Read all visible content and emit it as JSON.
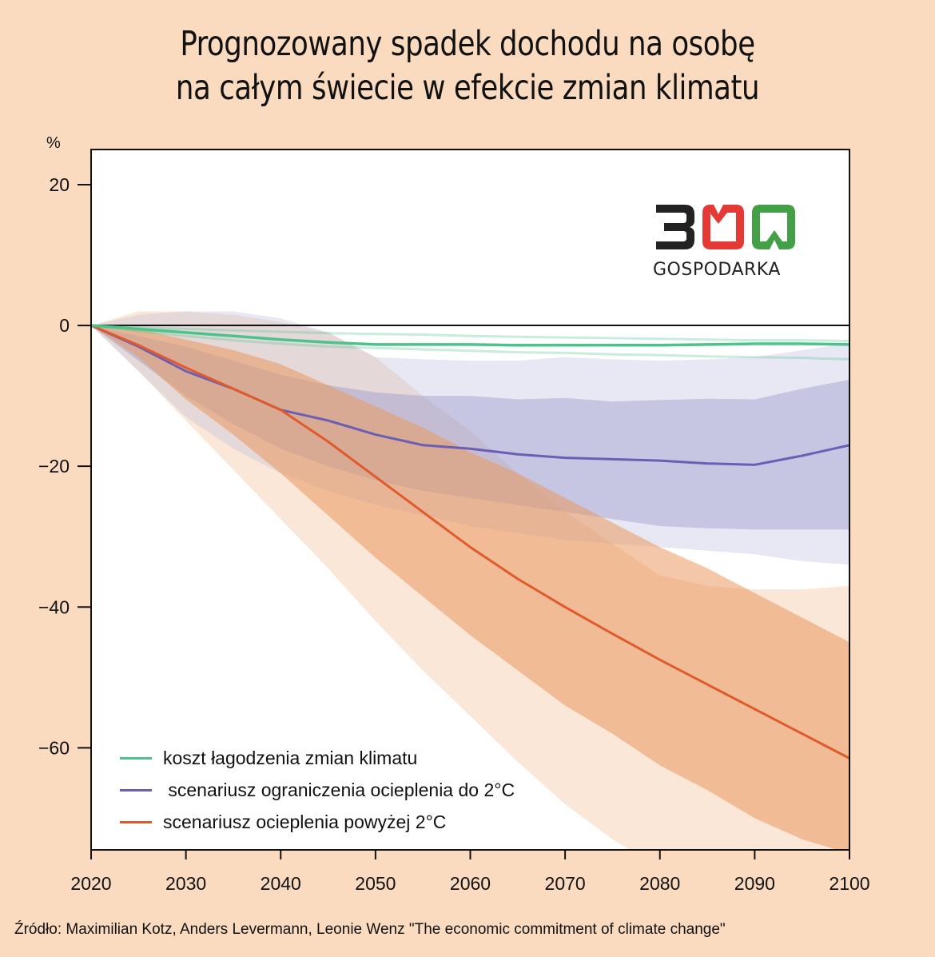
{
  "title_lines": [
    "Prognozowany spadek dochodu na osobę",
    "na całym świecie w efekcie zmian klimatu"
  ],
  "logo": {
    "number": "300",
    "label": "GOSPODARKA",
    "colors": [
      "#222222",
      "#e53935",
      "#43a047"
    ]
  },
  "source": "Źródło: Maximilian Kotz, Anders Levermann, Leonie Wenz \"The economic commitment of climate change\"",
  "chart_data": {
    "type": "line",
    "title": "Prognozowany spadek dochodu na osobę na całym świecie w efekcie zmian klimatu",
    "ylabel": "%",
    "xlabel": "",
    "xlim": [
      2020,
      2100
    ],
    "ylim": [
      -74.5,
      25
    ],
    "xticks": [
      2020,
      2030,
      2040,
      2050,
      2060,
      2070,
      2080,
      2090,
      2100
    ],
    "xtick_labels": [
      "2020",
      "2030",
      "2040",
      "2050",
      "2060",
      "2070",
      "2080",
      "2090",
      "2100"
    ],
    "yticks": [
      20,
      0,
      -20,
      -40,
      -60
    ],
    "ytick_labels": [
      "20",
      "0",
      "−20",
      "−40",
      "−60"
    ],
    "grid": false,
    "legend_position": "bottom-left",
    "x": [
      2020,
      2025,
      2030,
      2035,
      2040,
      2045,
      2050,
      2055,
      2060,
      2065,
      2070,
      2075,
      2080,
      2085,
      2090,
      2095,
      2100
    ],
    "series": [
      {
        "name": "koszt łagodzenia zmian klimatu",
        "color": "#4cc38a",
        "values": [
          0,
          -0.5,
          -1.0,
          -1.5,
          -2.0,
          -2.4,
          -2.7,
          -2.7,
          -2.7,
          -2.8,
          -2.8,
          -2.8,
          -2.8,
          -2.7,
          -2.6,
          -2.6,
          -2.7
        ],
        "bounds_upper": [
          0,
          -0.3,
          -0.5,
          -0.7,
          -0.9,
          -1.1,
          -1.2,
          -1.3,
          -1.5,
          -1.6,
          -1.7,
          -1.8,
          -1.9,
          -2.0,
          -2.1,
          -2.1,
          -2.2
        ],
        "bounds_lower": [
          0,
          -0.8,
          -1.5,
          -2.1,
          -2.6,
          -3.0,
          -3.2,
          -3.4,
          -3.6,
          -3.8,
          -3.9,
          -4.1,
          -4.2,
          -4.4,
          -4.5,
          -4.6,
          -4.8
        ]
      },
      {
        "name": " scenariusz ograniczenia ocieplenia do 2°C",
        "color": "#6a5fb5",
        "values": [
          0,
          -3.0,
          -6.5,
          -9.0,
          -12.0,
          -13.5,
          -15.5,
          -17.0,
          -17.5,
          -18.3,
          -18.8,
          -19.0,
          -19.2,
          -19.6,
          -19.8,
          -18.5,
          -17.0
        ],
        "band_inner": {
          "upper": [
            0,
            -1.5,
            -3.0,
            -5.0,
            -7.0,
            -8.5,
            -9.5,
            -10.0,
            -10.0,
            -10.5,
            -10.3,
            -10.8,
            -10.6,
            -10.4,
            -10.5,
            -9.0,
            -7.7
          ],
          "lower": [
            0,
            -5.0,
            -10.0,
            -14.0,
            -17.5,
            -20.0,
            -22.0,
            -23.5,
            -24.5,
            -25.5,
            -26.5,
            -27.5,
            -28.5,
            -28.8,
            -29.0,
            -29.0,
            -29.0
          ]
        },
        "band_outer": {
          "upper": [
            0,
            1.5,
            2.0,
            2.0,
            1.0,
            -1.0,
            -4.5,
            -4.8,
            -5.0,
            -5.0,
            -4.5,
            -4.8,
            -5.0,
            -4.8,
            -4.5,
            -3.5,
            -2.5
          ],
          "lower": [
            0,
            -6.5,
            -13.0,
            -17.5,
            -21.0,
            -23.5,
            -25.5,
            -27.0,
            -28.5,
            -29.5,
            -30.5,
            -31.0,
            -31.5,
            -32.0,
            -32.5,
            -33.5,
            -34.0
          ]
        }
      },
      {
        "name": "scenariusz ocieplenia powyżej 2°C",
        "color": "#e05a2b",
        "values": [
          0,
          -2.8,
          -6.0,
          -9.0,
          -12.0,
          -16.5,
          -21.5,
          -26.5,
          -31.5,
          -36.0,
          -40.0,
          -43.8,
          -47.5,
          -51.0,
          -54.5,
          -58.0,
          -61.5
        ],
        "band_inner": {
          "upper": [
            0,
            -0.5,
            -2.0,
            -3.5,
            -5.5,
            -8.5,
            -11.5,
            -14.5,
            -18.0,
            -21.0,
            -24.5,
            -28.0,
            -31.5,
            -34.5,
            -38.0,
            -41.5,
            -45.0
          ],
          "lower": [
            0,
            -4.5,
            -10.5,
            -15.5,
            -21.0,
            -27.0,
            -33.0,
            -38.5,
            -44.0,
            -49.0,
            -54.0,
            -58.0,
            -62.5,
            -66.0,
            -70.0,
            -73.0,
            -75.0
          ]
        },
        "band_outer": {
          "upper": [
            0,
            2.0,
            2.0,
            1.5,
            0.5,
            -1.0,
            -4.5,
            -10.0,
            -15.0,
            -21.0,
            -26.5,
            -31.0,
            -35.5,
            -37.0,
            -37.5,
            -37.5,
            -37.0
          ],
          "lower": [
            0,
            -6.5,
            -13.5,
            -20.5,
            -27.5,
            -34.5,
            -42.0,
            -49.0,
            -55.5,
            -62.0,
            -68.0,
            -73.0,
            -77.0,
            -80.0,
            -83.0,
            -86.0,
            -89.0
          ]
        }
      }
    ]
  }
}
